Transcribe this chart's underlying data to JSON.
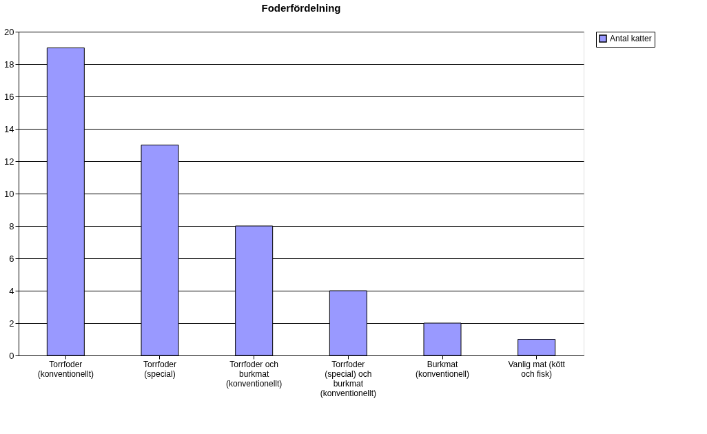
{
  "chart_data": {
    "type": "bar",
    "title": "Foderfördelning",
    "categories": [
      "Torrfoder (konventionellt)",
      "Torrfoder (special)",
      "Torrfoder och burkmat (konventionellt)",
      "Torrfoder (special) och burkmat (konventionellt)",
      "Burkmat (konventionell)",
      "Vanlig mat (kött och fisk)"
    ],
    "series": [
      {
        "name": "Antal katter",
        "color": "#9999ff",
        "values": [
          19,
          13,
          8,
          4,
          2,
          1
        ]
      }
    ],
    "ylim": [
      0,
      20
    ],
    "yticks": [
      0,
      2,
      4,
      6,
      8,
      10,
      12,
      14,
      16,
      18,
      20
    ],
    "grid": "y",
    "legend": "right"
  }
}
